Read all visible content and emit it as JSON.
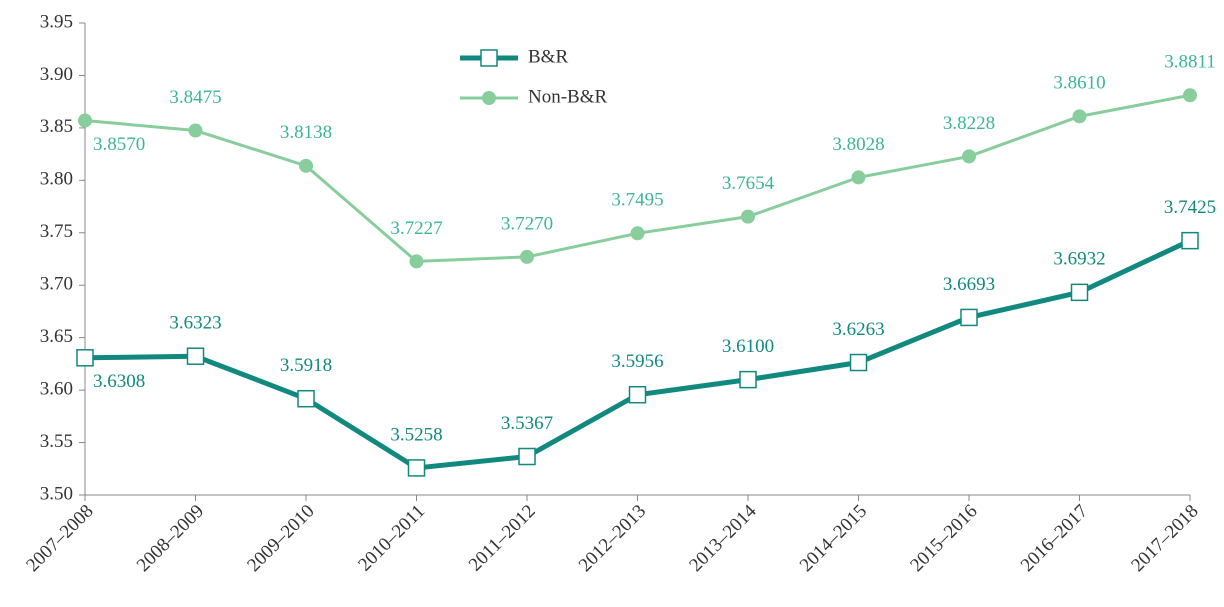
{
  "chart_data": {
    "type": "line",
    "categories": [
      "2007–2008",
      "2008–2009",
      "2009–2010",
      "2010–2011",
      "2011–2012",
      "2012–2013",
      "2013–2014",
      "2014–2015",
      "2015–2016",
      "2016–2017",
      "2017–2018"
    ],
    "series": [
      {
        "name": "B&R",
        "color": "#11897f",
        "label_color": "#11897f",
        "marker": "square",
        "values": [
          3.6308,
          3.6323,
          3.5918,
          3.5258,
          3.5367,
          3.5956,
          3.61,
          3.6263,
          3.6693,
          3.6932,
          3.7425
        ],
        "value_labels": [
          "3.6308",
          "3.6323",
          "3.5918",
          "3.5258",
          "3.5367",
          "3.5956",
          "3.6100",
          "3.6263",
          "3.6693",
          "3.6932",
          "3.7425"
        ]
      },
      {
        "name": "Non-B&R",
        "color": "#88cd9c",
        "label_color": "#3db597",
        "marker": "circle",
        "values": [
          3.857,
          3.8475,
          3.8138,
          3.7227,
          3.727,
          3.7495,
          3.7654,
          3.8028,
          3.8228,
          3.861,
          3.8811
        ],
        "value_labels": [
          "3.8570",
          "3.8475",
          "3.8138",
          "3.7227",
          "3.7270",
          "3.7495",
          "3.7654",
          "3.8028",
          "3.8228",
          "3.8610",
          "3.8811"
        ]
      }
    ],
    "ylim": [
      3.5,
      3.95
    ],
    "yticks": [
      {
        "value": 3.5,
        "label": "3.50"
      },
      3.55,
      {
        "value": 3.6,
        "label": "3.60"
      },
      3.65,
      {
        "value": 3.7,
        "label": "3.70"
      },
      3.75,
      {
        "value": 3.8,
        "label": "3.80"
      },
      3.85,
      {
        "value": 3.9,
        "label": "3.90"
      },
      3.95
    ],
    "grid": false,
    "legend": "top"
  }
}
